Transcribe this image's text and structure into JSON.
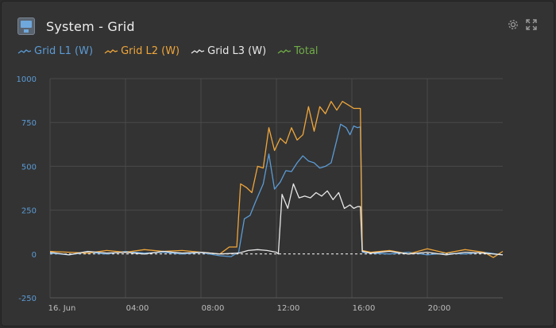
{
  "header": {
    "title": "System - Grid",
    "icon": "system-monitor-icon"
  },
  "toolbar": {
    "settings_icon": "gear-icon",
    "expand_icon": "expand-icon"
  },
  "colors": {
    "l1": "#5b9bd5",
    "l2": "#f0a63a",
    "l3": "#e8e8e8",
    "total": "#70ad47",
    "grid": "#4a4a4a",
    "zero": "#ffffff"
  },
  "chart_data": {
    "type": "line",
    "ylim": [
      -250,
      1000
    ],
    "yticks": [
      "1000",
      "750",
      "500",
      "250",
      "0",
      "-250"
    ],
    "xlim": [
      0,
      24
    ],
    "xticks": [
      {
        "x": 0,
        "label": "16. Jun"
      },
      {
        "x": 4,
        "label": "04:00"
      },
      {
        "x": 8,
        "label": "08:00"
      },
      {
        "x": 12,
        "label": "12:00"
      },
      {
        "x": 16,
        "label": "16:00"
      },
      {
        "x": 20,
        "label": "20:00"
      }
    ],
    "series": [
      {
        "name": "Grid L1 (W)",
        "color": "#5b9bd5",
        "points": [
          [
            0,
            5
          ],
          [
            1,
            -5
          ],
          [
            2,
            10
          ],
          [
            3,
            0
          ],
          [
            4,
            15
          ],
          [
            5,
            5
          ],
          [
            6,
            10
          ],
          [
            7,
            0
          ],
          [
            8,
            8
          ],
          [
            9,
            -10
          ],
          [
            9.6,
            -15
          ],
          [
            10,
            10
          ],
          [
            10.3,
            200
          ],
          [
            10.6,
            220
          ],
          [
            10.9,
            300
          ],
          [
            11.3,
            400
          ],
          [
            11.6,
            570
          ],
          [
            11.9,
            370
          ],
          [
            12.2,
            410
          ],
          [
            12.5,
            475
          ],
          [
            12.8,
            470
          ],
          [
            13.1,
            520
          ],
          [
            13.4,
            560
          ],
          [
            13.7,
            530
          ],
          [
            14,
            520
          ],
          [
            14.3,
            490
          ],
          [
            14.6,
            500
          ],
          [
            14.9,
            520
          ],
          [
            15.2,
            650
          ],
          [
            15.4,
            740
          ],
          [
            15.7,
            720
          ],
          [
            15.9,
            680
          ],
          [
            16.1,
            730
          ],
          [
            16.3,
            720
          ],
          [
            16.45,
            725
          ],
          [
            16.55,
            10
          ],
          [
            17,
            5
          ],
          [
            18,
            0
          ],
          [
            19,
            10
          ],
          [
            20,
            -5
          ],
          [
            21,
            5
          ],
          [
            22,
            0
          ],
          [
            23,
            10
          ],
          [
            24,
            -5
          ]
        ]
      },
      {
        "name": "Grid L2 (W)",
        "color": "#f0a63a",
        "points": [
          [
            0,
            15
          ],
          [
            1,
            10
          ],
          [
            2,
            5
          ],
          [
            3,
            20
          ],
          [
            4,
            10
          ],
          [
            5,
            25
          ],
          [
            6,
            15
          ],
          [
            7,
            20
          ],
          [
            8,
            10
          ],
          [
            9,
            0
          ],
          [
            9.5,
            40
          ],
          [
            9.9,
            40
          ],
          [
            10.1,
            400
          ],
          [
            10.4,
            380
          ],
          [
            10.7,
            350
          ],
          [
            11,
            500
          ],
          [
            11.3,
            490
          ],
          [
            11.6,
            720
          ],
          [
            11.9,
            590
          ],
          [
            12.2,
            660
          ],
          [
            12.5,
            630
          ],
          [
            12.8,
            720
          ],
          [
            13.1,
            650
          ],
          [
            13.4,
            680
          ],
          [
            13.7,
            840
          ],
          [
            14,
            700
          ],
          [
            14.3,
            840
          ],
          [
            14.6,
            800
          ],
          [
            14.9,
            870
          ],
          [
            15.2,
            820
          ],
          [
            15.5,
            870
          ],
          [
            15.8,
            850
          ],
          [
            16.1,
            830
          ],
          [
            16.3,
            830
          ],
          [
            16.45,
            830
          ],
          [
            16.55,
            20
          ],
          [
            17,
            10
          ],
          [
            18,
            20
          ],
          [
            19,
            0
          ],
          [
            20,
            30
          ],
          [
            21,
            5
          ],
          [
            22,
            25
          ],
          [
            23,
            10
          ],
          [
            23.5,
            -20
          ],
          [
            24,
            15
          ]
        ]
      },
      {
        "name": "Grid L3 (W)",
        "color": "#e8e8e8",
        "points": [
          [
            0,
            10
          ],
          [
            1,
            -5
          ],
          [
            2,
            15
          ],
          [
            3,
            5
          ],
          [
            4,
            10
          ],
          [
            5,
            0
          ],
          [
            6,
            15
          ],
          [
            7,
            5
          ],
          [
            8,
            10
          ],
          [
            9,
            0
          ],
          [
            10,
            5
          ],
          [
            10.5,
            20
          ],
          [
            11,
            25
          ],
          [
            11.5,
            20
          ],
          [
            12,
            10
          ],
          [
            12.1,
            0
          ],
          [
            12.3,
            340
          ],
          [
            12.6,
            260
          ],
          [
            12.9,
            400
          ],
          [
            13.2,
            320
          ],
          [
            13.5,
            330
          ],
          [
            13.8,
            320
          ],
          [
            14.1,
            350
          ],
          [
            14.4,
            330
          ],
          [
            14.7,
            360
          ],
          [
            15,
            310
          ],
          [
            15.3,
            350
          ],
          [
            15.6,
            260
          ],
          [
            15.9,
            280
          ],
          [
            16.1,
            260
          ],
          [
            16.3,
            270
          ],
          [
            16.45,
            270
          ],
          [
            16.55,
            15
          ],
          [
            17,
            5
          ],
          [
            18,
            15
          ],
          [
            19,
            0
          ],
          [
            20,
            10
          ],
          [
            21,
            -5
          ],
          [
            22,
            10
          ],
          [
            23,
            5
          ],
          [
            24,
            -5
          ]
        ]
      },
      {
        "name": "Total",
        "color": "#70ad47",
        "points": []
      }
    ]
  }
}
